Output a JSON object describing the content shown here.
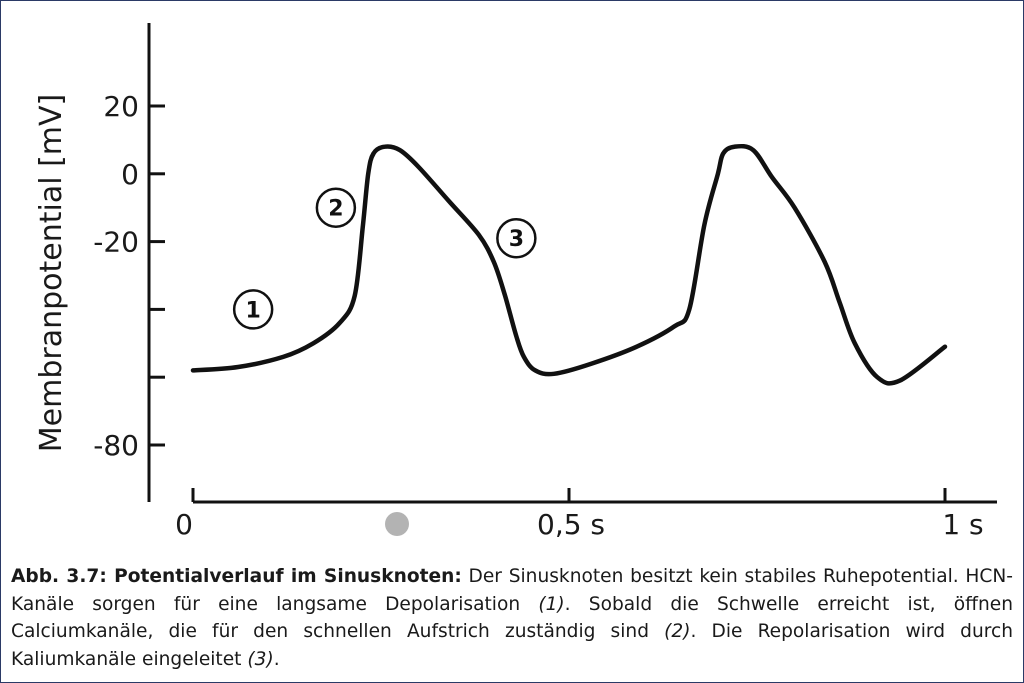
{
  "chart_data": {
    "type": "line",
    "title": "",
    "ylabel": "Membranpotential [mV]",
    "xlabel": "",
    "y_ticks": [
      20,
      0,
      -20,
      -40,
      -60,
      -80
    ],
    "y_tick_labels": [
      "20",
      "0",
      "-20",
      "",
      "",
      "-80"
    ],
    "x_ticks": [
      0,
      0.5,
      1.0
    ],
    "x_tick_labels": [
      "0",
      "0,5 s",
      "1 s"
    ],
    "ylim": [
      -96,
      45
    ],
    "xlim": [
      -0.06,
      1.07
    ],
    "grid": false,
    "series": [
      {
        "x": [
          0.0,
          0.06,
          0.12,
          0.16,
          0.195,
          0.215,
          0.226,
          0.233,
          0.24,
          0.255,
          0.275,
          0.3,
          0.34,
          0.38,
          0.4,
          0.415,
          0.43,
          0.44,
          0.455,
          0.48,
          0.53,
          0.59,
          0.64,
          0.66,
          0.68,
          0.698,
          0.705,
          0.72,
          0.745,
          0.77,
          0.8,
          0.84,
          0.86,
          0.88,
          0.91,
          0.94,
          1.0
        ],
        "y": [
          -58,
          -57,
          -54,
          -50,
          -44,
          -36,
          -15,
          0,
          6,
          8,
          7,
          2,
          -8,
          -18,
          -26,
          -36,
          -48,
          -54,
          -58,
          -59,
          -56,
          -51,
          -45,
          -40,
          -15,
          0,
          6,
          8,
          7,
          -1,
          -10,
          -26,
          -38,
          -50,
          -60,
          -61,
          -51
        ]
      }
    ],
    "annotations": [
      {
        "label": "1",
        "x": 0.08,
        "y": -40
      },
      {
        "label": "2",
        "x": 0.19,
        "y": -10
      },
      {
        "label": "3",
        "x": 0.43,
        "y": -19
      }
    ],
    "marker_color": "#b3b3b3"
  },
  "caption": {
    "title": "Abb. 3.7: Potentialverlauf im Sinusknoten:",
    "t1": " Der Sinusknoten besitzt kein stabiles Ruhepotential. HCN-Kanäle sorgen für eine langsame Depolarisation ",
    "i1": "(1)",
    "t2": ". Sobald die Schwelle erreicht ist, öffnen Calciumkanäle, die für den schnellen Aufstrich zuständig sind ",
    "i2": "(2)",
    "t3": ". Die Repolarisation wird durch Kaliumkanäle eingeleitet ",
    "i3": "(3)",
    "t4": "."
  }
}
